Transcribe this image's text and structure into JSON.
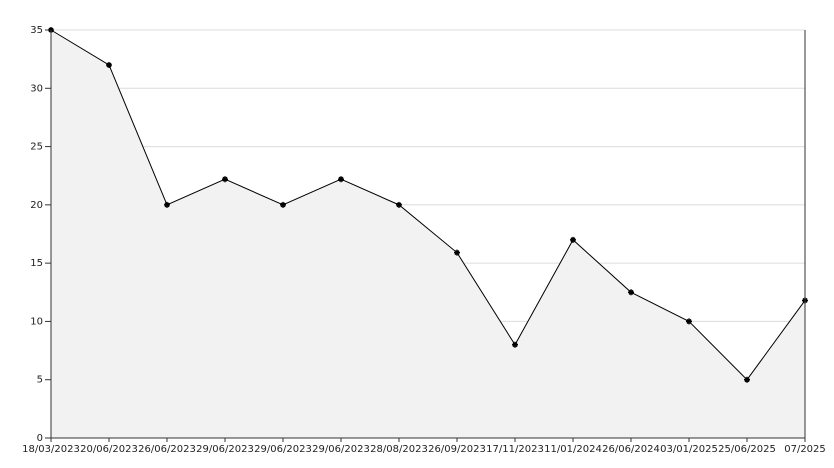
{
  "chart_data": {
    "type": "line",
    "categories": [
      "18/03/2023",
      "20/06/2023",
      "26/06/2023",
      "29/06/2023",
      "29/06/2023",
      "29/06/2023",
      "28/08/2023",
      "26/09/2023",
      "17/11/2023",
      "11/01/2024",
      "26/06/2024",
      "03/01/2025",
      "25/06/2025",
      "07/2025"
    ],
    "series": [
      {
        "color": "#000000",
        "values": [
          35,
          32,
          20,
          22.2,
          20,
          22.2,
          20,
          15.9,
          8,
          17,
          12.5,
          10,
          5,
          11.8
        ]
      }
    ],
    "fill": "#f2f2f2",
    "ylim": [
      0,
      35
    ],
    "yticks": [
      0,
      5,
      10,
      15,
      20,
      25,
      30,
      35
    ],
    "grid": true
  }
}
